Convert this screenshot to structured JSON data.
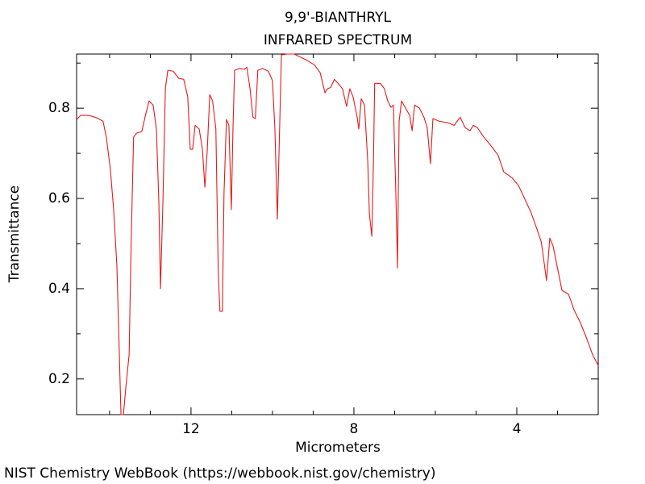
{
  "chart_data": {
    "type": "line",
    "title": "9,9'-BIANTHRYL",
    "subtitle": "INFRARED SPECTRUM",
    "xlabel": "Micrometers",
    "ylabel": "Transmittance",
    "source": "NIST Chemistry WebBook (https://webbook.nist.gov/chemistry)",
    "xlim": [
      14.81,
      2.0
    ],
    "ylim": [
      0.121,
      0.92
    ],
    "xticks": [
      12,
      8,
      4
    ],
    "xticks_minor": [
      14,
      13,
      11,
      10,
      9,
      7,
      6,
      5,
      3
    ],
    "yticks": [
      0.2,
      0.4,
      0.6,
      0.8
    ],
    "yticks_minor": [
      0.3,
      0.5,
      0.7,
      0.9
    ],
    "series": [
      {
        "name": "9,9'-BIANTHRYL",
        "color": "#e41a1c",
        "x": [
          14.81,
          14.71,
          14.51,
          14.32,
          14.16,
          14.08,
          13.98,
          13.9,
          13.82,
          13.76,
          13.72,
          13.66,
          13.6,
          13.52,
          13.47,
          13.41,
          13.33,
          13.21,
          13.13,
          13.03,
          12.93,
          12.85,
          12.79,
          12.75,
          12.69,
          12.63,
          12.57,
          12.44,
          12.3,
          12.18,
          12.08,
          12.02,
          11.96,
          11.9,
          11.8,
          11.72,
          11.66,
          11.6,
          11.54,
          11.47,
          11.39,
          11.33,
          11.29,
          11.23,
          11.19,
          11.13,
          11.07,
          11.01,
          10.97,
          10.93,
          10.81,
          10.69,
          10.63,
          10.55,
          10.48,
          10.42,
          10.36,
          10.24,
          10.1,
          10.0,
          9.94,
          9.88,
          9.82,
          9.78,
          9.64,
          9.47,
          9.33,
          9.17,
          8.97,
          8.83,
          8.71,
          8.65,
          8.57,
          8.48,
          8.36,
          8.28,
          8.18,
          8.1,
          8.02,
          7.92,
          7.88,
          7.82,
          7.74,
          7.66,
          7.62,
          7.56,
          7.52,
          7.49,
          7.35,
          7.25,
          7.17,
          7.09,
          7.03,
          6.97,
          6.93,
          6.89,
          6.83,
          6.73,
          6.63,
          6.57,
          6.51,
          6.39,
          6.28,
          6.2,
          6.12,
          6.06,
          5.9,
          5.7,
          5.54,
          5.39,
          5.27,
          5.15,
          5.07,
          4.97,
          4.81,
          4.61,
          4.46,
          4.32,
          4.12,
          3.96,
          3.82,
          3.66,
          3.52,
          3.4,
          3.33,
          3.27,
          3.19,
          3.11,
          2.99,
          2.89,
          2.73,
          2.59,
          2.44,
          2.28,
          2.14,
          2.0
        ],
        "values": [
          0.775,
          0.784,
          0.784,
          0.779,
          0.771,
          0.736,
          0.664,
          0.575,
          0.45,
          0.254,
          0.121,
          0.121,
          0.182,
          0.254,
          0.504,
          0.736,
          0.745,
          0.748,
          0.78,
          0.816,
          0.807,
          0.754,
          0.593,
          0.4,
          0.593,
          0.843,
          0.884,
          0.882,
          0.866,
          0.864,
          0.825,
          0.709,
          0.709,
          0.762,
          0.754,
          0.709,
          0.625,
          0.709,
          0.83,
          0.816,
          0.754,
          0.432,
          0.35,
          0.35,
          0.611,
          0.775,
          0.762,
          0.575,
          0.754,
          0.884,
          0.888,
          0.886,
          0.891,
          0.843,
          0.78,
          0.777,
          0.884,
          0.888,
          0.882,
          0.861,
          0.754,
          0.554,
          0.771,
          0.918,
          0.92,
          0.92,
          0.914,
          0.907,
          0.896,
          0.879,
          0.834,
          0.843,
          0.846,
          0.864,
          0.852,
          0.843,
          0.804,
          0.843,
          0.825,
          0.78,
          0.754,
          0.821,
          0.807,
          0.682,
          0.566,
          0.516,
          0.682,
          0.855,
          0.855,
          0.843,
          0.816,
          0.802,
          0.807,
          0.611,
          0.446,
          0.771,
          0.816,
          0.8,
          0.784,
          0.75,
          0.807,
          0.8,
          0.78,
          0.757,
          0.677,
          0.777,
          0.771,
          0.768,
          0.762,
          0.78,
          0.757,
          0.75,
          0.762,
          0.757,
          0.736,
          0.714,
          0.696,
          0.659,
          0.646,
          0.629,
          0.602,
          0.571,
          0.536,
          0.504,
          0.459,
          0.418,
          0.512,
          0.495,
          0.441,
          0.396,
          0.388,
          0.352,
          0.325,
          0.289,
          0.254,
          0.23
        ]
      }
    ]
  }
}
